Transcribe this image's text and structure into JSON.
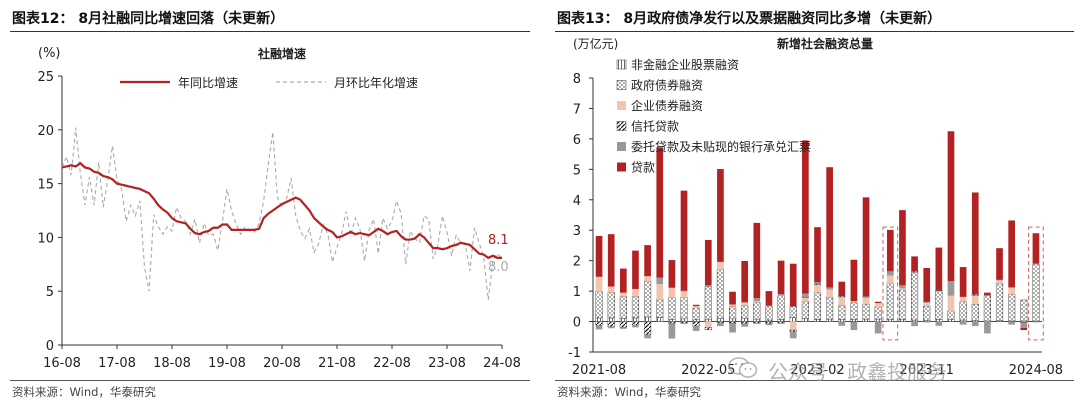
{
  "left": {
    "title": "图表12： 8月社融同比增速回落（未更新）",
    "source": "资料来源：Wind，华泰研究",
    "chart_data": {
      "type": "line",
      "title": "社融增速",
      "ylabel": "(%)",
      "ylim": [
        0,
        25
      ],
      "yticks": [
        "0",
        "5",
        "10",
        "15",
        "20",
        "25"
      ],
      "xlim": [
        0,
        96
      ],
      "xticks": [
        {
          "pos": 0,
          "label": "16-08"
        },
        {
          "pos": 12,
          "label": "17-08"
        },
        {
          "pos": 24,
          "label": "18-08"
        },
        {
          "pos": 36,
          "label": "19-08"
        },
        {
          "pos": 48,
          "label": "20-08"
        },
        {
          "pos": 60,
          "label": "21-08"
        },
        {
          "pos": 72,
          "label": "22-08"
        },
        {
          "pos": 84,
          "label": "23-08"
        },
        {
          "pos": 96,
          "label": "24-08"
        }
      ],
      "grid": false,
      "legend": "top",
      "series": [
        {
          "name": "年同比增速",
          "color": "#b22222",
          "style": "solid",
          "end_label": "8.1",
          "values": [
            16.5,
            16.6,
            16.7,
            16.6,
            16.9,
            16.5,
            16.4,
            16.1,
            16.0,
            15.7,
            15.6,
            15.4,
            15.0,
            14.9,
            14.8,
            14.7,
            14.6,
            14.5,
            14.3,
            14.1,
            13.6,
            13.0,
            12.6,
            12.3,
            11.8,
            11.5,
            11.4,
            11.3,
            10.8,
            10.4,
            10.3,
            10.5,
            10.6,
            10.9,
            10.9,
            11.2,
            11.2,
            10.7,
            10.7,
            10.7,
            10.7,
            10.7,
            10.7,
            10.8,
            11.8,
            12.2,
            12.5,
            12.8,
            13.1,
            13.3,
            13.5,
            13.7,
            13.5,
            13.0,
            12.5,
            11.8,
            11.4,
            11.0,
            10.7,
            10.5,
            10.0,
            10.1,
            10.3,
            10.5,
            10.3,
            10.4,
            10.3,
            10.2,
            10.5,
            10.8,
            10.6,
            10.3,
            10.5,
            10.6,
            10.1,
            9.8,
            9.8,
            9.9,
            10.3,
            10.0,
            9.5,
            9.0,
            9.0,
            8.9,
            9.0,
            9.2,
            9.3,
            9.5,
            9.4,
            9.3,
            8.9,
            8.5,
            8.4,
            8.1,
            8.3,
            8.1,
            8.1
          ]
        },
        {
          "name": "月环比年化增速",
          "color": "#aaaaaa",
          "style": "dashed",
          "end_label": "8.0",
          "values": [
            16.5,
            17.5,
            15.8,
            20.2,
            16.0,
            13.0,
            15.6,
            13.0,
            17.0,
            12.8,
            15.4,
            18.5,
            15.4,
            14.5,
            11.5,
            13.0,
            12.0,
            13.4,
            7.2,
            5.0,
            12.1,
            11.0,
            10.3,
            11.0,
            10.6,
            12.8,
            11.8,
            11.5,
            10.3,
            11.7,
            9.5,
            11.3,
            10.2,
            10.3,
            8.8,
            11.5,
            14.5,
            12.5,
            11.2,
            10.3,
            11.0,
            10.6,
            10.5,
            11.3,
            13.4,
            16.8,
            19.8,
            13.7,
            12.8,
            13.6,
            15.5,
            12.0,
            10.6,
            9.9,
            10.8,
            8.6,
            9.4,
            11.2,
            10.3,
            7.7,
            9.1,
            10.3,
            12.4,
            10.2,
            11.8,
            10.8,
            7.8,
            10.7,
            11.7,
            8.5,
            11.8,
            10.8,
            11.5,
            13.4,
            12.2,
            7.5,
            10.6,
            9.9,
            9.5,
            12.0,
            11.7,
            8.0,
            9.3,
            12.0,
            10.5,
            8.3,
            10.2,
            9.5,
            9.3,
            6.9,
            10.9,
            9.5,
            8.2,
            4.2,
            7.8,
            8.5,
            8.0
          ]
        }
      ]
    }
  },
  "right": {
    "title": "图表13： 8月政府债净发行以及票据融资同比多增（未更新）",
    "source": "资料来源：Wind，华泰研究",
    "chart_data": {
      "type": "bar",
      "stacked": true,
      "title": "新增社会融资总量",
      "ylabel": "(万亿元)",
      "ylim": [
        -1,
        8
      ],
      "yticks": [
        "-1",
        "0",
        "1",
        "2",
        "3",
        "4",
        "5",
        "6",
        "7",
        "8"
      ],
      "xticks": [
        {
          "index": 0,
          "label": "2021-08"
        },
        {
          "index": 9,
          "label": "2022-05"
        },
        {
          "index": 18,
          "label": "2023-02"
        },
        {
          "index": 27,
          "label": "2023-11"
        },
        {
          "index": 36,
          "label": "2024-08"
        }
      ],
      "categories": [
        "2021-08",
        "2021-09",
        "2021-10",
        "2021-11",
        "2021-12",
        "2022-01",
        "2022-02",
        "2022-03",
        "2022-04",
        "2022-05",
        "2022-06",
        "2022-07",
        "2022-08",
        "2022-09",
        "2022-10",
        "2022-11",
        "2022-12",
        "2023-01",
        "2023-02",
        "2023-03",
        "2023-04",
        "2023-05",
        "2023-06",
        "2023-07",
        "2023-08",
        "2023-09",
        "2023-10",
        "2023-11",
        "2023-12",
        "2024-01",
        "2024-02",
        "2024-03",
        "2024-04",
        "2024-05",
        "2024-06",
        "2024-07",
        "2024-08"
      ],
      "highlight_indices": [
        24,
        36
      ],
      "legend": "top-left",
      "series": [
        {
          "name": "非金融企业股票融资",
          "color": "#ffffff",
          "pattern": "vlines",
          "values": [
            0.12,
            0.12,
            0.1,
            0.12,
            0.15,
            0.13,
            0.07,
            0.09,
            0.06,
            0.08,
            0.1,
            0.09,
            0.11,
            0.08,
            0.05,
            0.07,
            0.13,
            0.1,
            0.07,
            0.08,
            0.06,
            0.06,
            0.08,
            0.08,
            0.06,
            0.06,
            0.05,
            0.04,
            0.07,
            0.06,
            0.05,
            0.04,
            0.02,
            0.03,
            0.02,
            0.02,
            0.02
          ]
        },
        {
          "name": "政府债券融资",
          "color": "#ffffff",
          "pattern": "dots",
          "values": [
            0.88,
            0.83,
            0.72,
            0.7,
            1.18,
            0.6,
            0.72,
            0.71,
            0.39,
            1.06,
            1.62,
            0.4,
            0.41,
            0.54,
            0.45,
            0.79,
            0.37,
            0.56,
            0.89,
            0.71,
            0.46,
            0.56,
            0.49,
            0.4,
            1.18,
            0.98,
            1.56,
            0.47,
            0.93,
            0.29,
            0.6,
            0.53,
            0.84,
            1.23,
            0.87,
            0.69,
            1.86
          ]
        },
        {
          "name": "企业债券融资",
          "color": "#f2c4b0",
          "pattern": "solid",
          "values": [
            0.47,
            0.2,
            0.13,
            0.25,
            0.16,
            0.5,
            0.32,
            0.19,
            0.06,
            -0.19,
            0.24,
            0.07,
            0.11,
            0.05,
            0.02,
            0.0,
            -0.28,
            0.14,
            0.25,
            0.26,
            0.29,
            0.05,
            0.24,
            0.13,
            0.27,
            0.05,
            0.02,
            0.13,
            0.02,
            0.5,
            0.16,
            0.29,
            -0.01,
            0.1,
            0.23,
            -0.02,
            0.02
          ]
        },
        {
          "name": "信托贷款",
          "color": "#ffffff",
          "pattern": "diag",
          "values": [
            -0.12,
            -0.17,
            -0.19,
            -0.11,
            -0.43,
            0.0,
            -0.06,
            -0.06,
            -0.15,
            -0.08,
            -0.04,
            -0.06,
            -0.07,
            -0.06,
            -0.07,
            -0.06,
            -0.06,
            0.01,
            0.03,
            0.0,
            0.03,
            -0.02,
            0.01,
            0.0,
            0.0,
            0.0,
            0.03,
            0.02,
            0.01,
            0.0,
            0.0,
            0.04,
            0.0,
            0.0,
            0.0,
            -0.01,
            0.0
          ]
        },
        {
          "name": "委托贷款及未贴现的银行承兑汇票",
          "color": "#999999",
          "pattern": "solid",
          "values": [
            -0.14,
            -0.05,
            -0.05,
            -0.08,
            -0.12,
            0.21,
            -0.5,
            0.02,
            -0.16,
            0.05,
            -0.11,
            -0.3,
            -0.1,
            0.1,
            -0.05,
            0.04,
            -0.21,
            0.11,
            0.05,
            0.07,
            -0.14,
            -0.26,
            0.02,
            -0.39,
            0.14,
            0.1,
            -0.15,
            -0.03,
            -0.14,
            0.48,
            -0.1,
            -0.15,
            -0.38,
            0.01,
            -0.1,
            -0.18,
            -0.03
          ]
        },
        {
          "name": "贷款",
          "color": "#b22222",
          "pattern": "solid",
          "values": [
            1.34,
            1.72,
            0.79,
            1.26,
            1.02,
            4.28,
            0.91,
            3.29,
            0.04,
            1.49,
            3.05,
            0.42,
            1.36,
            2.47,
            0.48,
            1.1,
            1.4,
            5.03,
            1.81,
            3.95,
            0.47,
            1.36,
            3.24,
            0.04,
            1.36,
            2.47,
            0.48,
            1.1,
            1.4,
            4.92,
            0.98,
            3.34,
            0.09,
            1.04,
            2.2,
            -0.07,
            1.0
          ]
        }
      ]
    }
  },
  "watermark": "公众号 · 政鑫投服务"
}
